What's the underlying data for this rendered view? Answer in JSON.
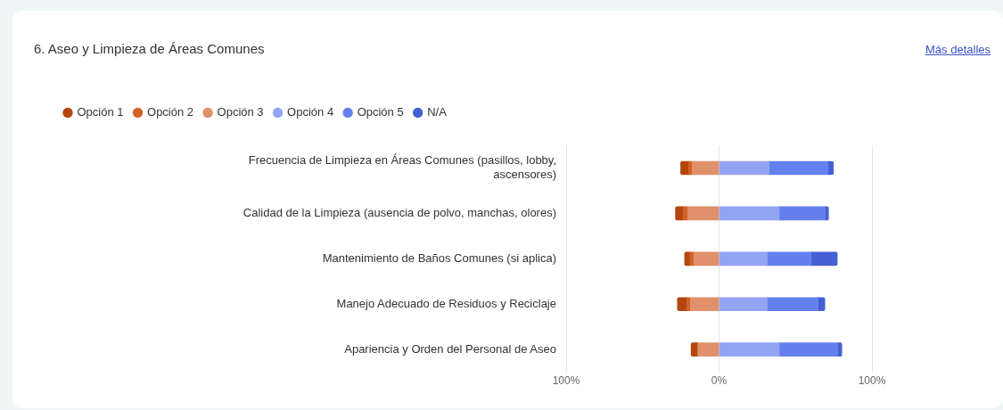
{
  "chart_data": {
    "type": "bar",
    "orientation": "horizontal",
    "stacked": true,
    "title": "6. Aseo y Limpieza de Áreas Comunes",
    "annotations": [
      "Más detalles"
    ],
    "categories": [
      "Frecuencia de Limpieza en Áreas Comunes (pasillos, lobby, ascensores)",
      "Calidad de la Limpieza (ausencia de polvo, manchas, olores)",
      "Mantenimiento de Baños Comunes (si aplica)",
      "Manejo Adecuado de Residuos y Reciclaje",
      "Apariencia y Orden del Personal de Aseo"
    ],
    "series": [
      {
        "name": "Opción 1",
        "color": "#b5460f",
        "values": [
          -5.3,
          -5,
          -3.5,
          -6.2,
          -4.4
        ]
      },
      {
        "name": "Opción 2",
        "color": "#d2632b",
        "values": [
          -2.3,
          -3,
          -2.5,
          -2.3,
          null
        ]
      },
      {
        "name": "Opción 3",
        "color": "#e0906a",
        "values": [
          -17.5,
          -20.5,
          -16.5,
          -18.7,
          -13.9
        ]
      },
      {
        "name": "Opción 4",
        "color": "#93a4f3",
        "values": [
          32.7,
          39.4,
          31.5,
          31.5,
          39.4
        ]
      },
      {
        "name": "Opción 5",
        "color": "#6480ef",
        "values": [
          38.6,
          30,
          28.8,
          33.3,
          38.4
        ]
      },
      {
        "name": "N/A",
        "color": "#465fd5",
        "values": [
          3.5,
          2.2,
          17,
          4.4,
          2.5
        ]
      }
    ],
    "xlim": [
      -100,
      100
    ],
    "xticks": [
      {
        "value": -100,
        "label": "100%"
      },
      {
        "value": 0,
        "label": "0%"
      },
      {
        "value": 100,
        "label": "100%"
      }
    ],
    "grid": "x",
    "legend": "top left"
  }
}
